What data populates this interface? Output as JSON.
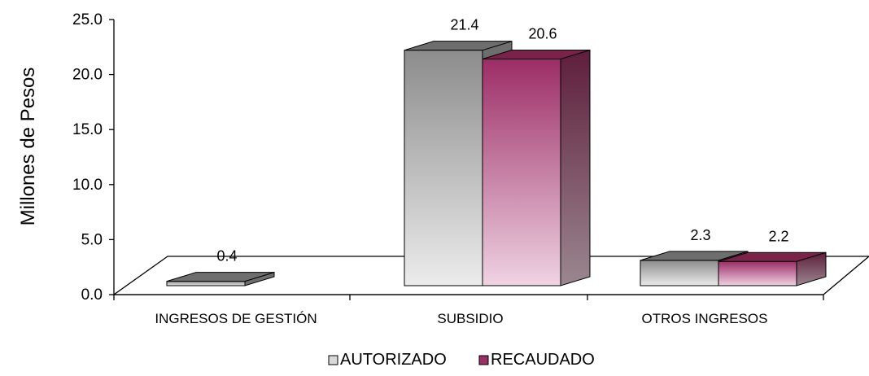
{
  "chart_data": {
    "type": "bar",
    "categories": [
      "INGRESOS DE GESTIÓN",
      "SUBSIDIO",
      "OTROS INGRESOS"
    ],
    "series": [
      {
        "name": "AUTORIZADO",
        "values": [
          0.4,
          21.4,
          2.3
        ],
        "labels": [
          "0.4",
          "21.4",
          "2.3"
        ]
      },
      {
        "name": "RECAUDADO",
        "values": [
          0.0,
          20.6,
          2.2
        ],
        "labels": [
          "",
          "20.6",
          "2.2"
        ]
      }
    ],
    "ylabel": "Millones de Pesos",
    "xlabel": "",
    "ylim": [
      0,
      25
    ],
    "yticks": [
      "0.0",
      "5.0",
      "10.0",
      "15.0",
      "20.0",
      "25.0"
    ],
    "legend_position": "bottom",
    "three_d": true,
    "colors": {
      "autorizado_top": "#6e6e6e",
      "autorizado_front_top": "#8c8c8c",
      "autorizado_front_bottom": "#ececec",
      "autorizado_side": "#6e6e6e",
      "recaudado_top": "#7a2249",
      "recaudado_front_top": "#9c2d66",
      "recaudado_front_bottom": "#efd3e3",
      "recaudado_side_top": "#5e1e3c",
      "recaudado_side_bottom": "#9b8790",
      "floor": "#ffffff",
      "axis": "#000000"
    }
  }
}
